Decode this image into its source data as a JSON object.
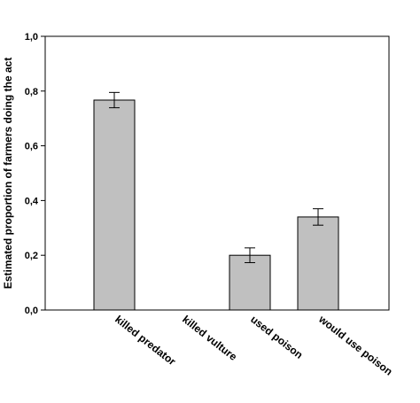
{
  "chart_data": {
    "type": "bar",
    "categories": [
      "killed predator",
      "killed vulture",
      "used poison",
      "would use poison"
    ],
    "values": [
      0.767,
      0.0,
      0.2,
      0.34
    ],
    "error": [
      0.028,
      0.0,
      0.027,
      0.03
    ],
    "ylabel": "Estimated proportion of farmers doing the act",
    "xlabel": "",
    "ylim": [
      0,
      1.0
    ],
    "yticks": [
      "0,0",
      "0,2",
      "0,4",
      "0,6",
      "0,8",
      "1,0"
    ],
    "ytick_values": [
      0,
      0.2,
      0.4,
      0.6,
      0.8,
      1.0
    ],
    "bar_color": "#c0c0c0",
    "grid": false
  }
}
